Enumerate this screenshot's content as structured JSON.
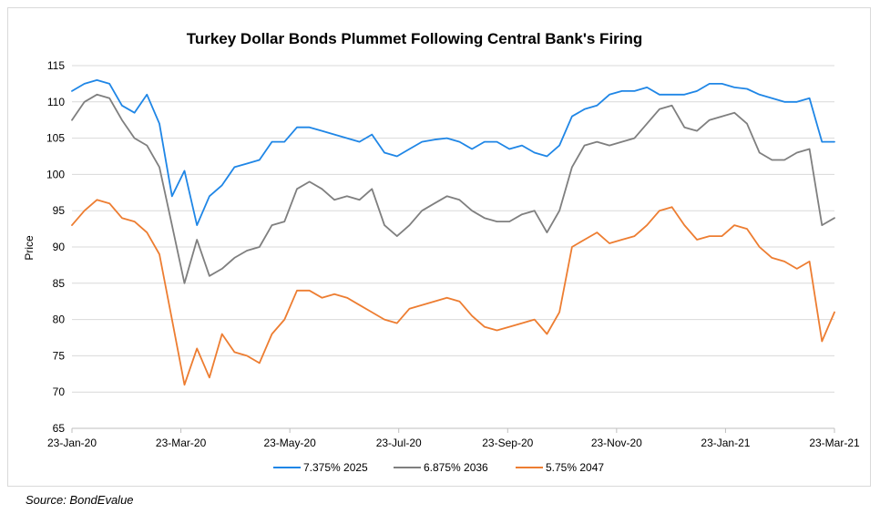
{
  "source": "Source: BondEvalue",
  "chart_data": {
    "type": "line",
    "title": "Turkey Dollar Bonds Plummet Following Central Bank's Firing",
    "ylabel": "Price",
    "xlabel": "",
    "ylim": [
      65,
      115
    ],
    "yticks": [
      65,
      70,
      75,
      80,
      85,
      90,
      95,
      100,
      105,
      110,
      115
    ],
    "xticks": [
      "23-Jan-20",
      "23-Mar-20",
      "23-May-20",
      "23-Jul-20",
      "23-Sep-20",
      "23-Nov-20",
      "23-Jan-21",
      "23-Mar-21"
    ],
    "xlim": [
      0,
      61
    ],
    "x": [
      0,
      1,
      2,
      3,
      4,
      5,
      6,
      7,
      8,
      9,
      10,
      11,
      12,
      13,
      14,
      15,
      16,
      17,
      18,
      19,
      20,
      21,
      22,
      23,
      24,
      25,
      26,
      27,
      28,
      29,
      30,
      31,
      32,
      33,
      34,
      35,
      36,
      37,
      38,
      39,
      40,
      41,
      42,
      43,
      44,
      45,
      46,
      47,
      48,
      49,
      50,
      51,
      52,
      53,
      54,
      55,
      56,
      57,
      58,
      59,
      60,
      61
    ],
    "x_dates": [
      "23-Jan-20",
      "30-Jan-20",
      "6-Feb-20",
      "13-Feb-20",
      "20-Feb-20",
      "27-Feb-20",
      "5-Mar-20",
      "12-Mar-20",
      "19-Mar-20",
      "26-Mar-20",
      "2-Apr-20",
      "9-Apr-20",
      "16-Apr-20",
      "23-Apr-20",
      "30-Apr-20",
      "7-May-20",
      "14-May-20",
      "21-May-20",
      "28-May-20",
      "4-Jun-20",
      "11-Jun-20",
      "18-Jun-20",
      "25-Jun-20",
      "2-Jul-20",
      "9-Jul-20",
      "16-Jul-20",
      "23-Jul-20",
      "30-Jul-20",
      "6-Aug-20",
      "13-Aug-20",
      "20-Aug-20",
      "27-Aug-20",
      "3-Sep-20",
      "10-Sep-20",
      "17-Sep-20",
      "24-Sep-20",
      "1-Oct-20",
      "8-Oct-20",
      "15-Oct-20",
      "22-Oct-20",
      "29-Oct-20",
      "5-Nov-20",
      "12-Nov-20",
      "19-Nov-20",
      "26-Nov-20",
      "3-Dec-20",
      "10-Dec-20",
      "17-Dec-20",
      "24-Dec-20",
      "31-Dec-20",
      "7-Jan-21",
      "14-Jan-21",
      "21-Jan-21",
      "28-Jan-21",
      "4-Feb-21",
      "11-Feb-21",
      "18-Feb-21",
      "25-Feb-21",
      "4-Mar-21",
      "11-Mar-21",
      "18-Mar-21",
      "23-Mar-21"
    ],
    "series": [
      {
        "name": "7.375% 2025",
        "color": "#1f86e6",
        "values": [
          111.5,
          112.5,
          113,
          112.5,
          109.5,
          108.5,
          111,
          107,
          97,
          100.5,
          93,
          97,
          98.5,
          101,
          101.5,
          102,
          104.5,
          104.5,
          106.5,
          106.5,
          106,
          105.5,
          105,
          104.5,
          105.5,
          103,
          102.5,
          103.5,
          104.5,
          104.8,
          105,
          104.5,
          103.5,
          104.5,
          104.5,
          103.5,
          104,
          103,
          102.5,
          104,
          108,
          109,
          109.5,
          111,
          111.5,
          111.5,
          112,
          111,
          111,
          111,
          111.5,
          112.5,
          112.5,
          112,
          111.8,
          111,
          110.5,
          110,
          110,
          110.5,
          104.5,
          104.5
        ]
      },
      {
        "name": "6.875% 2036",
        "color": "#7f7f7f",
        "values": [
          107.5,
          110,
          111,
          110.5,
          107.5,
          105,
          104,
          101,
          93,
          85,
          91,
          86,
          87,
          88.5,
          89.5,
          90,
          93,
          93.5,
          98,
          99,
          98,
          96.5,
          97,
          96.5,
          98,
          93,
          91.5,
          93,
          95,
          96,
          97,
          96.5,
          95,
          94,
          93.5,
          93.5,
          94.5,
          95,
          92,
          95,
          101,
          104,
          104.5,
          104,
          104.5,
          105,
          107,
          109,
          109.5,
          106.5,
          106,
          107.5,
          108,
          108.5,
          107,
          103,
          102,
          102,
          103,
          103.5,
          93,
          94
        ]
      },
      {
        "name": "5.75% 2047",
        "color": "#ed7d31",
        "values": [
          93,
          95,
          96.5,
          96,
          94,
          93.5,
          92,
          89,
          80,
          71,
          76,
          72,
          78,
          75.5,
          75,
          74,
          78,
          80,
          84,
          84,
          83,
          83.5,
          83,
          82,
          81,
          80,
          79.5,
          81.5,
          82,
          82.5,
          83,
          82.5,
          80.5,
          79,
          78.5,
          79,
          79.5,
          80,
          78,
          81,
          90,
          91,
          92,
          90.5,
          91,
          91.5,
          93,
          95,
          95.5,
          93,
          91,
          91.5,
          91.5,
          93,
          92.5,
          90,
          88.5,
          88,
          87,
          88,
          77,
          81
        ]
      }
    ],
    "legend_position": "bottom",
    "grid": true
  }
}
